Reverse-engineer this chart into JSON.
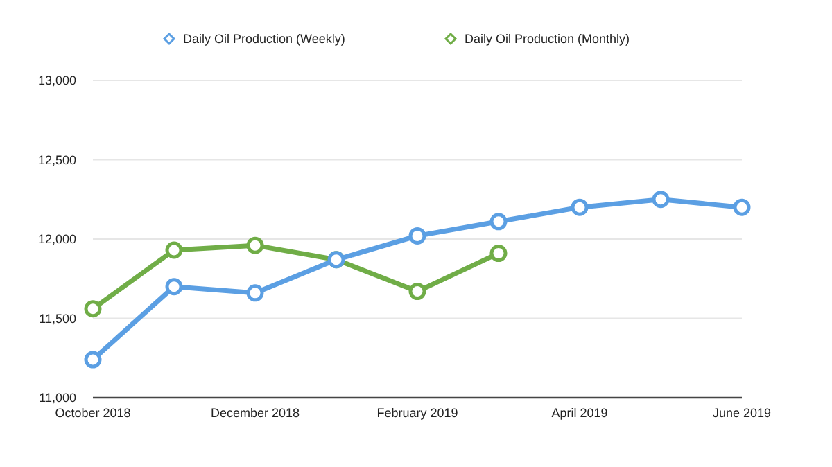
{
  "chart_data": {
    "type": "line",
    "categories": [
      "October 2018",
      null,
      "December 2018",
      null,
      "February 2019",
      null,
      "April 2019",
      null,
      "June 2019"
    ],
    "series": [
      {
        "name": "Daily Oil Production (Weekly)",
        "color": "#5b9fe3",
        "values": [
          11240,
          11700,
          11660,
          11870,
          12020,
          12110,
          12200,
          12250,
          12200
        ]
      },
      {
        "name": "Daily Oil Production (Monthly)",
        "color": "#70ad47",
        "values": [
          11560,
          11930,
          11960,
          11870,
          11670,
          11910,
          null,
          null,
          null
        ]
      }
    ],
    "ylim": [
      11000,
      13000
    ],
    "yticks": [
      {
        "value": 11000,
        "label": "11,000"
      },
      {
        "value": 11500,
        "label": "11,500"
      },
      {
        "value": 12000,
        "label": "12,000"
      },
      {
        "value": 12500,
        "label": "12,500"
      },
      {
        "value": 13000,
        "label": "13,000"
      }
    ],
    "grid": "y",
    "legend": "top",
    "marker": "circle",
    "line_style": "solid"
  }
}
